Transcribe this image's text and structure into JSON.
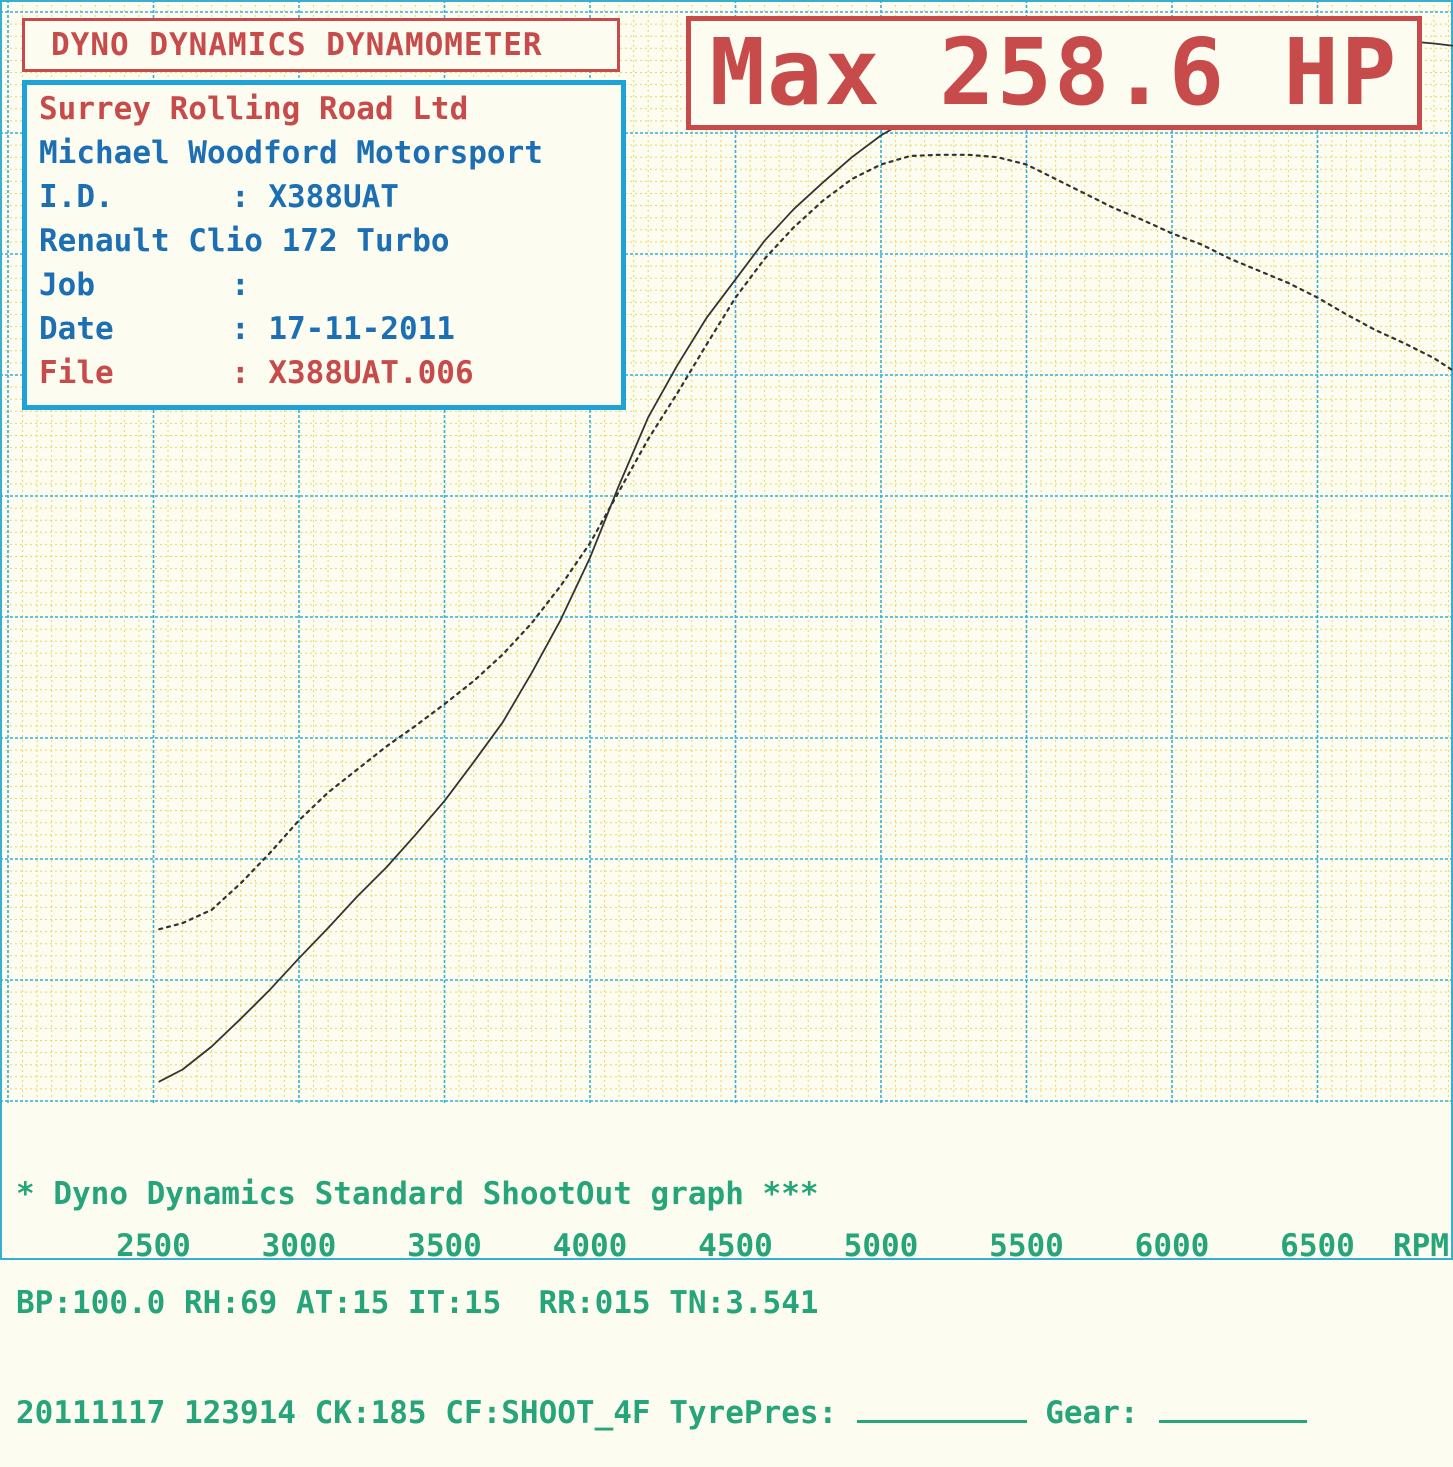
{
  "header": {
    "title": "DYNO DYNAMICS DYNAMOMETER",
    "max_label": "Max 258.6 HP"
  },
  "info": {
    "company": "Surrey Rolling Road Ltd",
    "customer": "Michael Woodford Motorsport",
    "id_label": "I.D.",
    "id_value": ": X388UAT",
    "vehicle": "Renault Clio 172 Turbo",
    "job_label": "Job",
    "job_value": ":",
    "date_label": "Date",
    "date_value": ": 17-11-2011",
    "file_label": "File",
    "file_value": ": X388UAT.006"
  },
  "footer": {
    "line1": "* Dyno Dynamics Standard ShootOut graph ***",
    "line2": "BP:100.0 RH:69 AT:15 IT:15  RR:015 TN:3.541",
    "line3": "20111117 123914 CK:185 CF:SHOOT_4F TyrePres:",
    "gear_label": "Gear:"
  },
  "colors": {
    "red": "#c84b4b",
    "blue": "#1ea3d8",
    "green": "#26a47a",
    "grid_major": "#37b0cf",
    "grid_minor": "#e8d860",
    "curve": "#333333"
  },
  "chart_data": {
    "type": "line",
    "xlabel": "RPM",
    "x_ticks": [
      2500,
      3000,
      3500,
      4000,
      4500,
      5000,
      5500,
      6000,
      6500
    ],
    "xlim": [
      2000,
      6970
    ],
    "ylim": [
      0,
      9
    ],
    "y_axis_unlabeled": true,
    "grid": true,
    "series": [
      {
        "style": "solid",
        "x": [
          2520,
          2600,
          2700,
          2800,
          2900,
          3000,
          3100,
          3200,
          3300,
          3400,
          3500,
          3600,
          3700,
          3800,
          3900,
          4000,
          4100,
          4200,
          4300,
          4400,
          4500,
          4600,
          4700,
          4800,
          4900,
          5000,
          5100,
          5200,
          5300,
          5400,
          5500,
          5600,
          5700,
          5800,
          5900,
          6000,
          6100,
          6200,
          6300,
          6400,
          6500,
          6600,
          6700,
          6800,
          6900,
          6970
        ],
        "y": [
          0.16,
          0.26,
          0.45,
          0.68,
          0.92,
          1.18,
          1.43,
          1.69,
          1.93,
          2.2,
          2.48,
          2.8,
          3.13,
          3.54,
          3.98,
          4.49,
          5.09,
          5.65,
          6.08,
          6.47,
          6.79,
          7.11,
          7.37,
          7.59,
          7.8,
          7.98,
          8.12,
          8.22,
          8.32,
          8.41,
          8.49,
          8.57,
          8.62,
          8.67,
          8.71,
          8.75,
          8.78,
          8.8,
          8.82,
          8.82,
          8.82,
          8.8,
          8.78,
          8.76,
          8.74,
          8.72
        ]
      },
      {
        "style": "dotted",
        "x": [
          2520,
          2600,
          2700,
          2800,
          2900,
          3000,
          3100,
          3200,
          3300,
          3400,
          3500,
          3600,
          3700,
          3800,
          3900,
          4000,
          4100,
          4200,
          4300,
          4400,
          4500,
          4600,
          4700,
          4800,
          4900,
          5000,
          5100,
          5200,
          5300,
          5400,
          5500,
          5600,
          5700,
          5800,
          5900,
          6000,
          6100,
          6200,
          6300,
          6400,
          6500,
          6600,
          6700,
          6800,
          6900,
          6970
        ],
        "y": [
          1.42,
          1.47,
          1.58,
          1.8,
          2.05,
          2.32,
          2.55,
          2.74,
          2.93,
          3.1,
          3.28,
          3.47,
          3.69,
          3.95,
          4.26,
          4.61,
          5.04,
          5.47,
          5.85,
          6.25,
          6.64,
          6.96,
          7.22,
          7.44,
          7.62,
          7.74,
          7.81,
          7.82,
          7.82,
          7.8,
          7.74,
          7.62,
          7.5,
          7.38,
          7.28,
          7.17,
          7.08,
          6.96,
          6.86,
          6.76,
          6.64,
          6.5,
          6.37,
          6.26,
          6.14,
          6.03
        ]
      }
    ]
  }
}
